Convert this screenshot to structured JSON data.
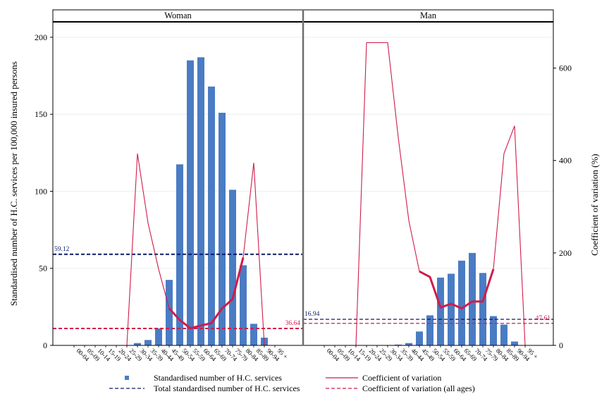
{
  "chart_data": {
    "type": "bar",
    "y_left_label": "Standardised number of H.C. services per 100,000 insured persons",
    "y_right_label": "Coefficient of variation (%)",
    "ylim_left": [
      0,
      210
    ],
    "ylim_right": [
      0,
      700
    ],
    "yticks_left": [
      "0",
      "50",
      "100",
      "150",
      "200"
    ],
    "yticks_right": [
      "0",
      "200",
      "400",
      "600"
    ],
    "categories": [
      "00-04",
      "05-09",
      "10-14",
      "15-19",
      "20-24",
      "25-29",
      "30-34",
      "35-39",
      "40-44",
      "45-49",
      "50-54",
      "55-59",
      "60-64",
      "65-69",
      "70-74",
      "75-79",
      "80-84",
      "85-89",
      "90-94",
      "95 +"
    ],
    "panels": [
      {
        "name": "Woman",
        "bars": [
          0,
          0,
          0,
          0,
          0,
          0,
          1.5,
          3.5,
          11,
          42.5,
          117.5,
          185,
          187,
          168,
          151,
          101,
          52,
          14,
          5,
          0
        ],
        "cv": [
          null,
          null,
          null,
          null,
          null,
          0,
          415,
          265,
          165,
          80,
          55,
          37,
          43,
          48,
          80,
          100,
          190,
          395,
          0,
          null
        ],
        "cv_bold_range": [
          9,
          16
        ],
        "total": 59.12,
        "total_label": "59.12",
        "cv_all": 36.64,
        "cv_all_label": "36.64"
      },
      {
        "name": "Man",
        "bars": [
          0,
          0,
          0,
          0,
          0,
          0,
          0,
          0.5,
          1.5,
          9,
          19.5,
          44,
          46.5,
          55,
          60,
          47,
          19,
          13.5,
          2.5,
          0
        ],
        "cv": [
          null,
          null,
          null,
          0,
          655,
          655,
          655,
          450,
          270,
          160,
          148,
          82,
          90,
          80,
          95,
          95,
          165,
          415,
          475,
          0
        ],
        "cv_bold_range": [
          9,
          16
        ],
        "total": 16.94,
        "total_label": "16.94",
        "cv_all": 47.61,
        "cv_all_label": "47.61"
      }
    ],
    "colors": {
      "bar": "#4a7cc4",
      "cv": "#d01c4a",
      "total": "#0a1a66",
      "cv_all": "#d01c4a",
      "panel_border": "#000000",
      "divider": "#6e6e6e",
      "grid": "#eeeeee"
    },
    "legend": {
      "items": [
        {
          "label": "Standardised number of H.C. services",
          "kind": "bar"
        },
        {
          "label": "Coefficient of variation",
          "kind": "line"
        },
        {
          "label": "Total standardised number of H.C. services",
          "kind": "dash-navy"
        },
        {
          "label": "Coefficient of variation (all ages)",
          "kind": "dash-red"
        }
      ],
      "position": "bottom"
    }
  }
}
